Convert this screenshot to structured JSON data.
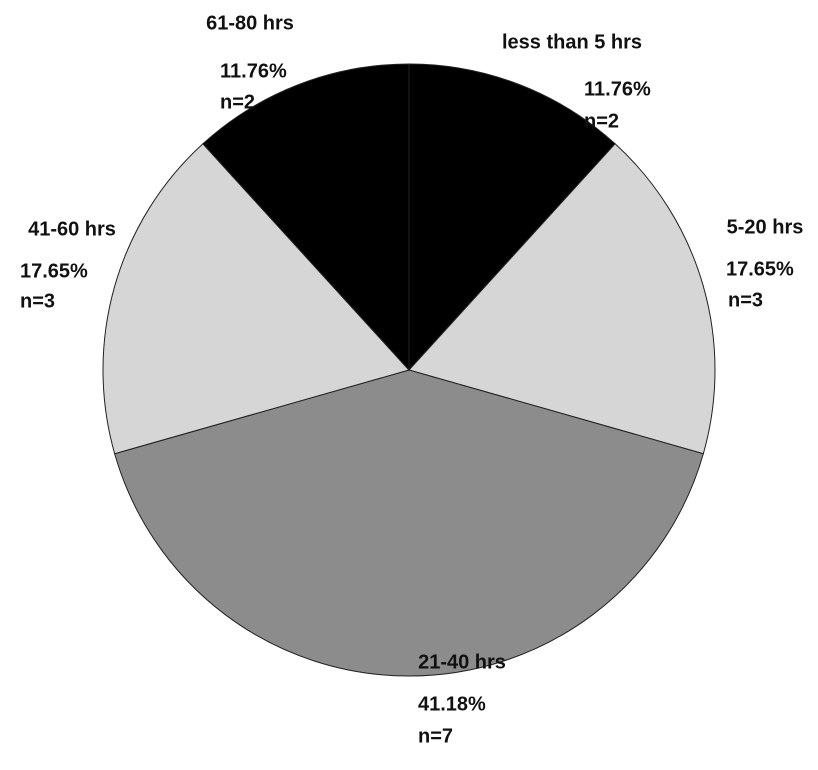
{
  "chart_data": {
    "type": "pie",
    "categories": [
      "less than 5 hrs",
      "5-20 hrs",
      "21-40 hrs",
      "41-60 hrs",
      "61-80 hrs"
    ],
    "values": [
      11.76,
      17.65,
      41.18,
      17.65,
      11.76
    ],
    "value_labels": [
      "11.76%",
      "17.65%",
      "41.18%",
      "17.65%",
      "11.76%"
    ],
    "count_labels": [
      "n=2",
      "n=3",
      "n=7",
      "n=3",
      "n=2"
    ],
    "colors": [
      "#000000",
      "#d6d6d6",
      "#8c8c8c",
      "#d6d6d6",
      "#000000"
    ]
  }
}
